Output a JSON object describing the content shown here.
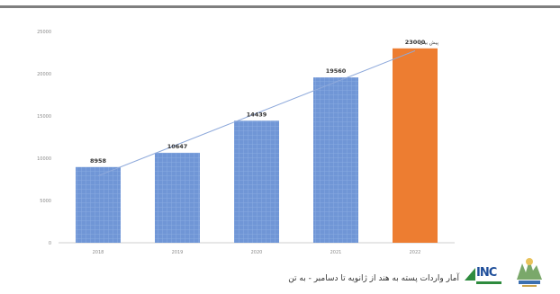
{
  "chart_data": {
    "type": "bar",
    "categories": [
      "2018",
      "2019",
      "2020",
      "2021",
      "2022"
    ],
    "values": [
      8958,
      10647,
      14439,
      19560,
      23000
    ],
    "data_labels": [
      "8958",
      "10647",
      "14439",
      "19560",
      "23000"
    ],
    "highlight_label": "پیش بینی",
    "trendline": true,
    "title": "",
    "xlabel": "",
    "ylabel": "",
    "ylim": [
      0,
      25000
    ],
    "yticks": [
      "0",
      "5000",
      "10000",
      "15000",
      "20000",
      "25000"
    ],
    "grid": false,
    "colors": {
      "bars": "#7096d6",
      "highlight": "#ed7d31",
      "trendline": "#8ea9db"
    }
  },
  "footer": {
    "caption": "آمار واردات پسته به هند از ژانویه تا دسامبر - به تن",
    "inc_logo_text": "INC"
  }
}
